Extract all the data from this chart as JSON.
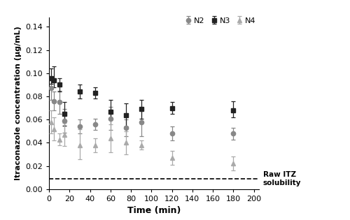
{
  "title": "",
  "xlabel": "Time (min)",
  "ylabel": "Itraconazole concentration (μg/mL)",
  "xlim": [
    0,
    205
  ],
  "ylim": [
    0,
    0.148
  ],
  "yticks": [
    0.0,
    0.02,
    0.04,
    0.06,
    0.08,
    0.1,
    0.12,
    0.14
  ],
  "xticks": [
    0,
    20,
    40,
    60,
    80,
    100,
    120,
    140,
    160,
    180,
    200
  ],
  "dashed_line_y": 0.009,
  "raw_itz_label": "Raw ITZ\nsolubility",
  "N2": {
    "x": [
      2,
      5,
      10,
      15,
      30,
      45,
      60,
      75,
      90,
      120,
      180
    ],
    "y": [
      0.087,
      0.076,
      0.075,
      0.059,
      0.054,
      0.056,
      0.061,
      0.053,
      0.058,
      0.048,
      0.048
    ],
    "yerr_low": [
      0.01,
      0.008,
      0.01,
      0.01,
      0.006,
      0.005,
      0.01,
      0.007,
      0.012,
      0.006,
      0.005
    ],
    "yerr_high": [
      0.01,
      0.008,
      0.01,
      0.01,
      0.006,
      0.005,
      0.01,
      0.007,
      0.012,
      0.006,
      0.005
    ],
    "color": "#888888",
    "marker": "o",
    "markersize": 4.5,
    "label": "N2"
  },
  "N3": {
    "x": [
      2,
      5,
      10,
      15,
      30,
      45,
      60,
      75,
      90,
      120,
      180
    ],
    "y": [
      0.096,
      0.094,
      0.09,
      0.065,
      0.084,
      0.083,
      0.067,
      0.064,
      0.069,
      0.07,
      0.068
    ],
    "yerr_low": [
      0.005,
      0.006,
      0.006,
      0.01,
      0.006,
      0.005,
      0.007,
      0.01,
      0.008,
      0.005,
      0.006
    ],
    "yerr_high": [
      0.008,
      0.012,
      0.006,
      0.01,
      0.006,
      0.005,
      0.01,
      0.01,
      0.008,
      0.005,
      0.008
    ],
    "color": "#222222",
    "marker": "s",
    "markersize": 4.5,
    "label": "N3"
  },
  "N4": {
    "x": [
      2,
      5,
      10,
      15,
      30,
      45,
      60,
      75,
      90,
      120,
      180
    ],
    "y": [
      0.058,
      0.052,
      0.043,
      0.047,
      0.038,
      0.038,
      0.044,
      0.04,
      0.038,
      0.027,
      0.022
    ],
    "yerr_low": [
      0.01,
      0.01,
      0.005,
      0.01,
      0.012,
      0.006,
      0.012,
      0.01,
      0.004,
      0.006,
      0.006
    ],
    "yerr_high": [
      0.01,
      0.01,
      0.005,
      0.01,
      0.014,
      0.006,
      0.012,
      0.01,
      0.004,
      0.006,
      0.006
    ],
    "color": "#aaaaaa",
    "marker": "^",
    "markersize": 4.5,
    "label": "N4"
  },
  "background_color": "#ffffff",
  "figsize": [
    5.0,
    3.15
  ],
  "dpi": 100
}
